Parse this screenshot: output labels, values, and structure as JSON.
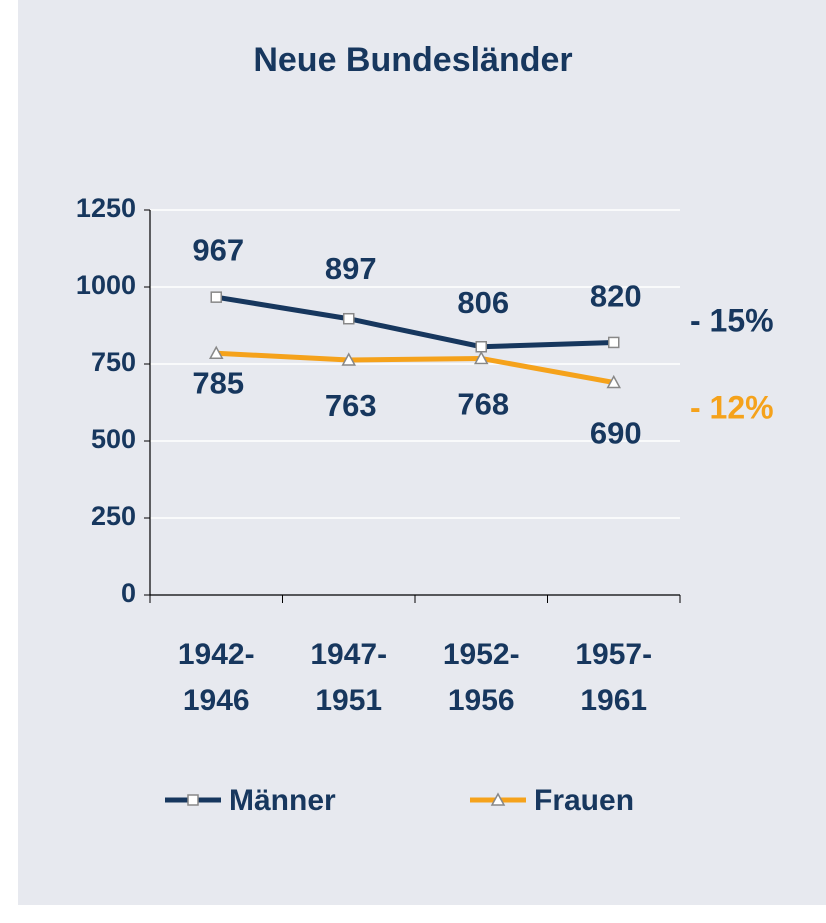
{
  "chart_data": {
    "type": "line",
    "title": "Neue Bundesländer",
    "categories": [
      "1942-1946",
      "1947-1951",
      "1952-1956",
      "1957-1961"
    ],
    "series": [
      {
        "name": "Männer",
        "color": "#17375e",
        "marker": "square",
        "label_position": "above",
        "values": [
          967,
          897,
          806,
          820
        ]
      },
      {
        "name": "Frauen",
        "color": "#f5a21b",
        "marker": "triangle",
        "label_position": "below",
        "values": [
          785,
          763,
          768,
          690
        ]
      }
    ],
    "annotations": [
      {
        "text": "- 15%",
        "color": "#17375e"
      },
      {
        "text": "- 12%",
        "color": "#f5a21b"
      }
    ],
    "ylim": [
      0,
      1250
    ],
    "yticks": [
      0,
      250,
      500,
      750,
      1000,
      1250
    ],
    "grid": true,
    "legend": "bottom"
  }
}
